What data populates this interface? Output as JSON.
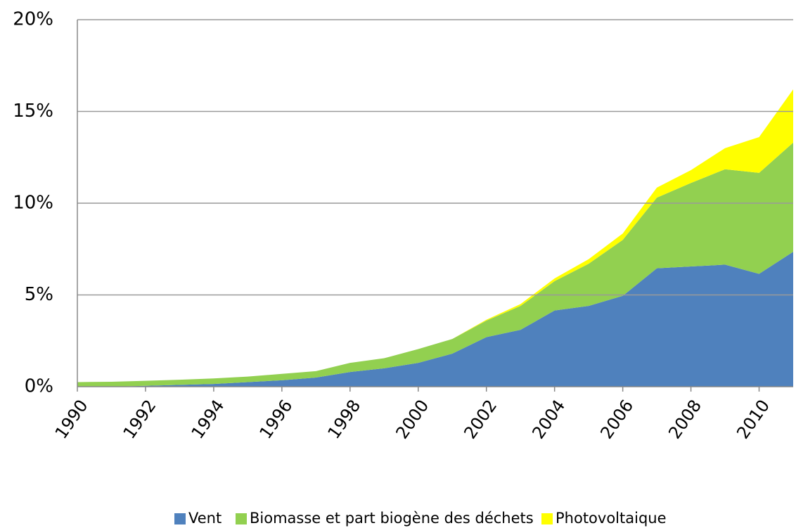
{
  "chart_data": {
    "type": "stacked_area",
    "x": [
      1990,
      1991,
      1992,
      1993,
      1994,
      1995,
      1996,
      1997,
      1998,
      1999,
      2000,
      2001,
      2002,
      2003,
      2004,
      2005,
      2006,
      2007,
      2008,
      2009,
      2010,
      2011
    ],
    "series": [
      {
        "name": "Vent",
        "color": "#4f81bd",
        "values": [
          0,
          0,
          0.05,
          0.1,
          0.15,
          0.25,
          0.35,
          0.5,
          0.8,
          1.0,
          1.3,
          1.8,
          2.7,
          3.1,
          4.15,
          4.4,
          4.95,
          6.45,
          6.55,
          6.65,
          6.15,
          7.35
        ]
      },
      {
        "name": "Biomasse et part biogène des déchets",
        "color": "#92d050",
        "values": [
          0.25,
          0.27,
          0.27,
          0.28,
          0.3,
          0.3,
          0.35,
          0.35,
          0.5,
          0.55,
          0.75,
          0.8,
          0.9,
          1.3,
          1.6,
          2.3,
          3.05,
          3.85,
          4.55,
          5.2,
          5.5,
          5.95
        ]
      },
      {
        "name": "Photovoltaique",
        "color": "#ffff00",
        "values": [
          0,
          0,
          0,
          0,
          0,
          0,
          0,
          0,
          0,
          0,
          0,
          0,
          0.05,
          0.1,
          0.15,
          0.25,
          0.35,
          0.55,
          0.7,
          1.15,
          1.95,
          2.9
        ]
      }
    ],
    "xlim": [
      1990,
      2011
    ],
    "xticks": [
      1990,
      1992,
      1994,
      1996,
      1998,
      2000,
      2002,
      2004,
      2006,
      2008,
      2010
    ],
    "ylim": [
      0,
      20
    ],
    "yticks": [
      {
        "value": 0,
        "label": "0%"
      },
      {
        "value": 5,
        "label": "5%"
      },
      {
        "value": 10,
        "label": "10%"
      },
      {
        "value": 15,
        "label": "15%"
      },
      {
        "value": 20,
        "label": "20%"
      }
    ],
    "grid": true,
    "legend": "bottom"
  }
}
